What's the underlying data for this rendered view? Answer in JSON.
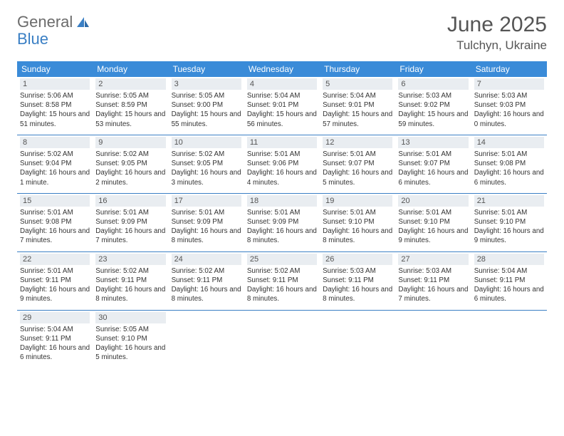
{
  "brand": {
    "part1": "General",
    "part2": "Blue"
  },
  "title": "June 2025",
  "location": "Tulchyn, Ukraine",
  "colors": {
    "header_bg": "#3a8bd8",
    "divider": "#3a7fc4",
    "daynum_bg": "#e9edf1",
    "text": "#333333",
    "brand_gray": "#6b6b6b",
    "brand_blue": "#3a7fc4",
    "page_bg": "#ffffff"
  },
  "dow": [
    "Sunday",
    "Monday",
    "Tuesday",
    "Wednesday",
    "Thursday",
    "Friday",
    "Saturday"
  ],
  "weeks": [
    [
      {
        "n": "1",
        "sr": "5:06 AM",
        "ss": "8:58 PM",
        "dl": "15 hours and 51 minutes."
      },
      {
        "n": "2",
        "sr": "5:05 AM",
        "ss": "8:59 PM",
        "dl": "15 hours and 53 minutes."
      },
      {
        "n": "3",
        "sr": "5:05 AM",
        "ss": "9:00 PM",
        "dl": "15 hours and 55 minutes."
      },
      {
        "n": "4",
        "sr": "5:04 AM",
        "ss": "9:01 PM",
        "dl": "15 hours and 56 minutes."
      },
      {
        "n": "5",
        "sr": "5:04 AM",
        "ss": "9:01 PM",
        "dl": "15 hours and 57 minutes."
      },
      {
        "n": "6",
        "sr": "5:03 AM",
        "ss": "9:02 PM",
        "dl": "15 hours and 59 minutes."
      },
      {
        "n": "7",
        "sr": "5:03 AM",
        "ss": "9:03 PM",
        "dl": "16 hours and 0 minutes."
      }
    ],
    [
      {
        "n": "8",
        "sr": "5:02 AM",
        "ss": "9:04 PM",
        "dl": "16 hours and 1 minute."
      },
      {
        "n": "9",
        "sr": "5:02 AM",
        "ss": "9:05 PM",
        "dl": "16 hours and 2 minutes."
      },
      {
        "n": "10",
        "sr": "5:02 AM",
        "ss": "9:05 PM",
        "dl": "16 hours and 3 minutes."
      },
      {
        "n": "11",
        "sr": "5:01 AM",
        "ss": "9:06 PM",
        "dl": "16 hours and 4 minutes."
      },
      {
        "n": "12",
        "sr": "5:01 AM",
        "ss": "9:07 PM",
        "dl": "16 hours and 5 minutes."
      },
      {
        "n": "13",
        "sr": "5:01 AM",
        "ss": "9:07 PM",
        "dl": "16 hours and 6 minutes."
      },
      {
        "n": "14",
        "sr": "5:01 AM",
        "ss": "9:08 PM",
        "dl": "16 hours and 6 minutes."
      }
    ],
    [
      {
        "n": "15",
        "sr": "5:01 AM",
        "ss": "9:08 PM",
        "dl": "16 hours and 7 minutes."
      },
      {
        "n": "16",
        "sr": "5:01 AM",
        "ss": "9:09 PM",
        "dl": "16 hours and 7 minutes."
      },
      {
        "n": "17",
        "sr": "5:01 AM",
        "ss": "9:09 PM",
        "dl": "16 hours and 8 minutes."
      },
      {
        "n": "18",
        "sr": "5:01 AM",
        "ss": "9:09 PM",
        "dl": "16 hours and 8 minutes."
      },
      {
        "n": "19",
        "sr": "5:01 AM",
        "ss": "9:10 PM",
        "dl": "16 hours and 8 minutes."
      },
      {
        "n": "20",
        "sr": "5:01 AM",
        "ss": "9:10 PM",
        "dl": "16 hours and 9 minutes."
      },
      {
        "n": "21",
        "sr": "5:01 AM",
        "ss": "9:10 PM",
        "dl": "16 hours and 9 minutes."
      }
    ],
    [
      {
        "n": "22",
        "sr": "5:01 AM",
        "ss": "9:11 PM",
        "dl": "16 hours and 9 minutes."
      },
      {
        "n": "23",
        "sr": "5:02 AM",
        "ss": "9:11 PM",
        "dl": "16 hours and 8 minutes."
      },
      {
        "n": "24",
        "sr": "5:02 AM",
        "ss": "9:11 PM",
        "dl": "16 hours and 8 minutes."
      },
      {
        "n": "25",
        "sr": "5:02 AM",
        "ss": "9:11 PM",
        "dl": "16 hours and 8 minutes."
      },
      {
        "n": "26",
        "sr": "5:03 AM",
        "ss": "9:11 PM",
        "dl": "16 hours and 8 minutes."
      },
      {
        "n": "27",
        "sr": "5:03 AM",
        "ss": "9:11 PM",
        "dl": "16 hours and 7 minutes."
      },
      {
        "n": "28",
        "sr": "5:04 AM",
        "ss": "9:11 PM",
        "dl": "16 hours and 6 minutes."
      }
    ],
    [
      {
        "n": "29",
        "sr": "5:04 AM",
        "ss": "9:11 PM",
        "dl": "16 hours and 6 minutes."
      },
      {
        "n": "30",
        "sr": "5:05 AM",
        "ss": "9:10 PM",
        "dl": "16 hours and 5 minutes."
      },
      null,
      null,
      null,
      null,
      null
    ]
  ],
  "labels": {
    "sunrise": "Sunrise: ",
    "sunset": "Sunset: ",
    "daylight": "Daylight: "
  }
}
